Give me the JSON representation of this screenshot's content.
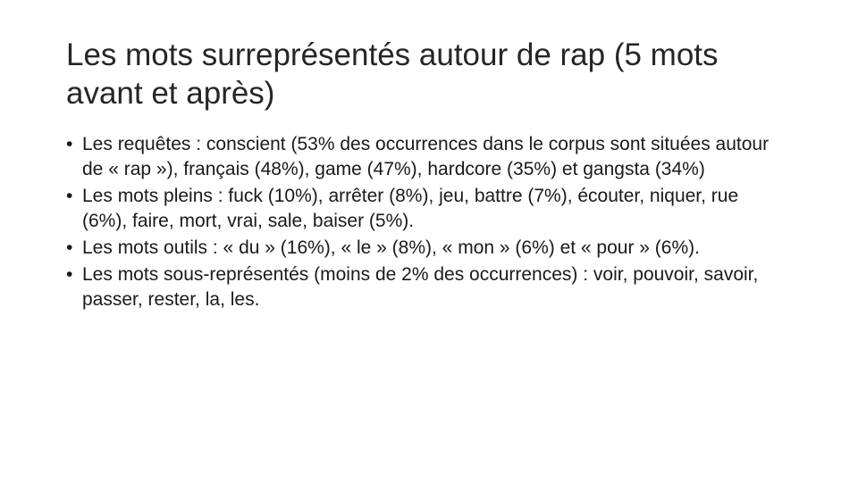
{
  "slide": {
    "title": "Les mots surreprésentés autour de rap (5 mots avant et après)",
    "bullet_marker": "•",
    "bullets": [
      "Les requêtes : conscient (53% des occurrences dans le corpus sont situées autour de « rap »), français (48%), game (47%), hardcore (35%) et gangsta (34%)",
      "Les mots pleins : fuck (10%), arrêter (8%), jeu, battre (7%), écouter, niquer, rue (6%), faire, mort, vrai, sale, baiser (5%).",
      "Les mots outils : « du » (16%), « le » (8%), « mon » (6%) et « pour » (6%).",
      "Les mots sous-représentés (moins de 2% des occurrences) : voir, pouvoir, savoir, passer, rester, la, les."
    ]
  }
}
